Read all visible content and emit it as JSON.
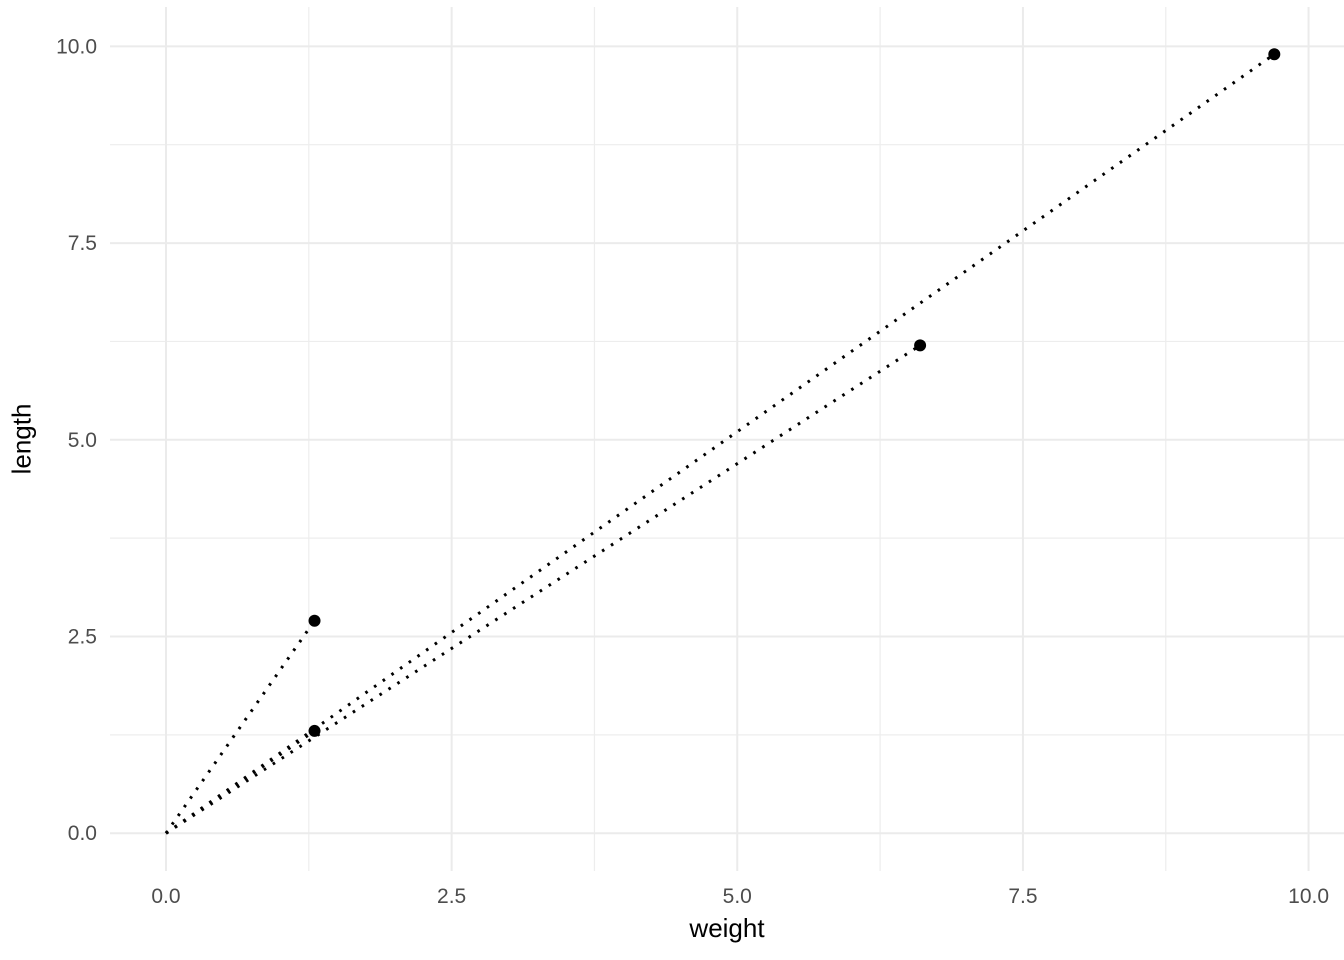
{
  "figure": {
    "background": "#FFFFFF"
  },
  "chart_data": {
    "type": "scatter",
    "title": "",
    "xlabel": "weight",
    "ylabel": "length",
    "points": [
      {
        "weight": 1.3,
        "length": 2.7
      },
      {
        "weight": 1.3,
        "length": 1.3
      },
      {
        "weight": 6.6,
        "length": 6.2
      },
      {
        "weight": 9.7,
        "length": 9.9
      }
    ],
    "segments": [
      {
        "x1": 0,
        "y1": 0,
        "x2": 1.3,
        "y2": 2.7
      },
      {
        "x1": 0,
        "y1": 0,
        "x2": 1.3,
        "y2": 1.3
      },
      {
        "x1": 0,
        "y1": 0,
        "x2": 6.6,
        "y2": 6.2
      },
      {
        "x1": 0,
        "y1": 0,
        "x2": 9.7,
        "y2": 9.9
      }
    ],
    "x_ticks": [
      {
        "value": 0.0,
        "label": "0.0"
      },
      {
        "value": 2.5,
        "label": "2.5"
      },
      {
        "value": 5.0,
        "label": "5.0"
      },
      {
        "value": 7.5,
        "label": "7.5"
      },
      {
        "value": 10.0,
        "label": "10.0"
      }
    ],
    "y_ticks": [
      {
        "value": 0.0,
        "label": "0.0"
      },
      {
        "value": 2.5,
        "label": "2.5"
      },
      {
        "value": 5.0,
        "label": "5.0"
      },
      {
        "value": 7.5,
        "label": "7.5"
      },
      {
        "value": 10.0,
        "label": "10.0"
      }
    ],
    "x_minor": [
      1.25,
      3.75,
      6.25,
      8.75
    ],
    "y_minor": [
      1.25,
      3.75,
      6.25,
      8.75
    ],
    "xlim": [
      -0.49,
      10.31
    ],
    "ylim": [
      -0.48,
      10.5
    ],
    "grid": "on",
    "legend": "none",
    "style": {
      "grid_major_color": "#EBEBEB",
      "grid_minor_color": "#EDEDED",
      "tick_label_color": "#4D4D4D",
      "axis_title_color": "#000000",
      "point_color": "#000000",
      "line_color": "#000000",
      "line_style": "dotted"
    }
  }
}
